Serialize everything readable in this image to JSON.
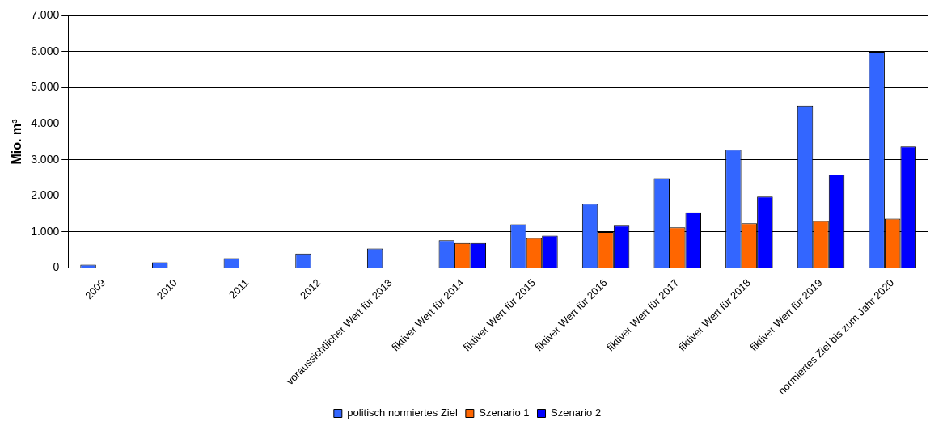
{
  "chart_data": {
    "type": "bar",
    "ylabel": "Mio. m³",
    "categories": [
      "2009",
      "2010",
      "2011",
      "2012",
      "voraussichtlicher Wert für 2013",
      "fiktiver Wert für 2014",
      "fiktiver Wert für 2015",
      "fiktiver Wert für 2016",
      "fiktiver Wert für 2017",
      "fiktiver Wert für 2018",
      "fiktiver Wert für 2019",
      "normiertes Ziel bis zum Jahr 2020"
    ],
    "series": [
      {
        "name": "politisch normiertes Ziel",
        "color": "#3366ff",
        "values": [
          90,
          160,
          270,
          400,
          540,
          770,
          1210,
          1780,
          2490,
          3280,
          4500,
          6000
        ]
      },
      {
        "name": "Szenario 1",
        "color": "#ff6600",
        "values": [
          null,
          null,
          null,
          null,
          null,
          690,
          830,
          1000,
          1130,
          1240,
          1300,
          1370
        ]
      },
      {
        "name": "Szenario 2",
        "color": "#0000ff",
        "values": [
          null,
          null,
          null,
          null,
          null,
          690,
          900,
          1170,
          1540,
          1980,
          2590,
          3370
        ]
      }
    ],
    "ylim": [
      0,
      7000
    ],
    "yticks": [
      {
        "value": 0,
        "label": "0"
      },
      {
        "value": 1000,
        "label": "1.000"
      },
      {
        "value": 2000,
        "label": "2.000"
      },
      {
        "value": 3000,
        "label": "3.000"
      },
      {
        "value": 4000,
        "label": "4.000"
      },
      {
        "value": 5000,
        "label": "5.000"
      },
      {
        "value": 6000,
        "label": "6.000"
      },
      {
        "value": 7000,
        "label": "7.000"
      }
    ],
    "grid": "y",
    "legend": "bottom"
  }
}
